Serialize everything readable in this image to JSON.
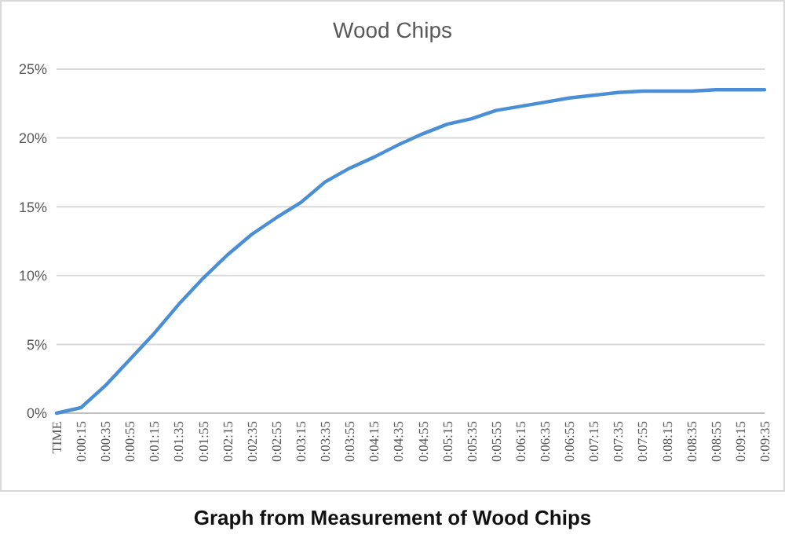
{
  "chart_data": {
    "type": "line",
    "title": "Wood Chips",
    "categories": [
      "TIME",
      "0:00:15",
      "0:00:35",
      "0:00:55",
      "0:01:15",
      "0:01:35",
      "0:01:55",
      "0:02:15",
      "0:02:35",
      "0:02:55",
      "0:03:15",
      "0:03:35",
      "0:03:55",
      "0:04:15",
      "0:04:35",
      "0:04:55",
      "0:05:15",
      "0:05:35",
      "0:05:55",
      "0:06:15",
      "0:06:35",
      "0:06:55",
      "0:07:15",
      "0:07:35",
      "0:07:55",
      "0:08:15",
      "0:08:35",
      "0:08:55",
      "0:09:15",
      "0:09:35"
    ],
    "series": [
      {
        "color": "#4a8fd6",
        "values": [
          0,
          0.4,
          2.0,
          3.9,
          5.8,
          7.9,
          9.8,
          11.5,
          13.0,
          14.2,
          15.3,
          16.8,
          17.8,
          18.6,
          19.5,
          20.3,
          21.0,
          21.4,
          22.0,
          22.3,
          22.6,
          22.9,
          23.1,
          23.3,
          23.4,
          23.4,
          23.4,
          23.5,
          23.5,
          23.5
        ]
      }
    ],
    "ylim": [
      0,
      25
    ],
    "yticks": [
      {
        "value": 0,
        "label": "0%"
      },
      {
        "value": 5,
        "label": "5%"
      },
      {
        "value": 10,
        "label": "10%"
      },
      {
        "value": 15,
        "label": "15%"
      },
      {
        "value": 20,
        "label": "20%"
      },
      {
        "value": 25,
        "label": "25%"
      }
    ],
    "grid": "y",
    "marker": "none",
    "line_style": "solid",
    "annotations": [
      "Graph from Measurement of Wood Chips"
    ]
  }
}
